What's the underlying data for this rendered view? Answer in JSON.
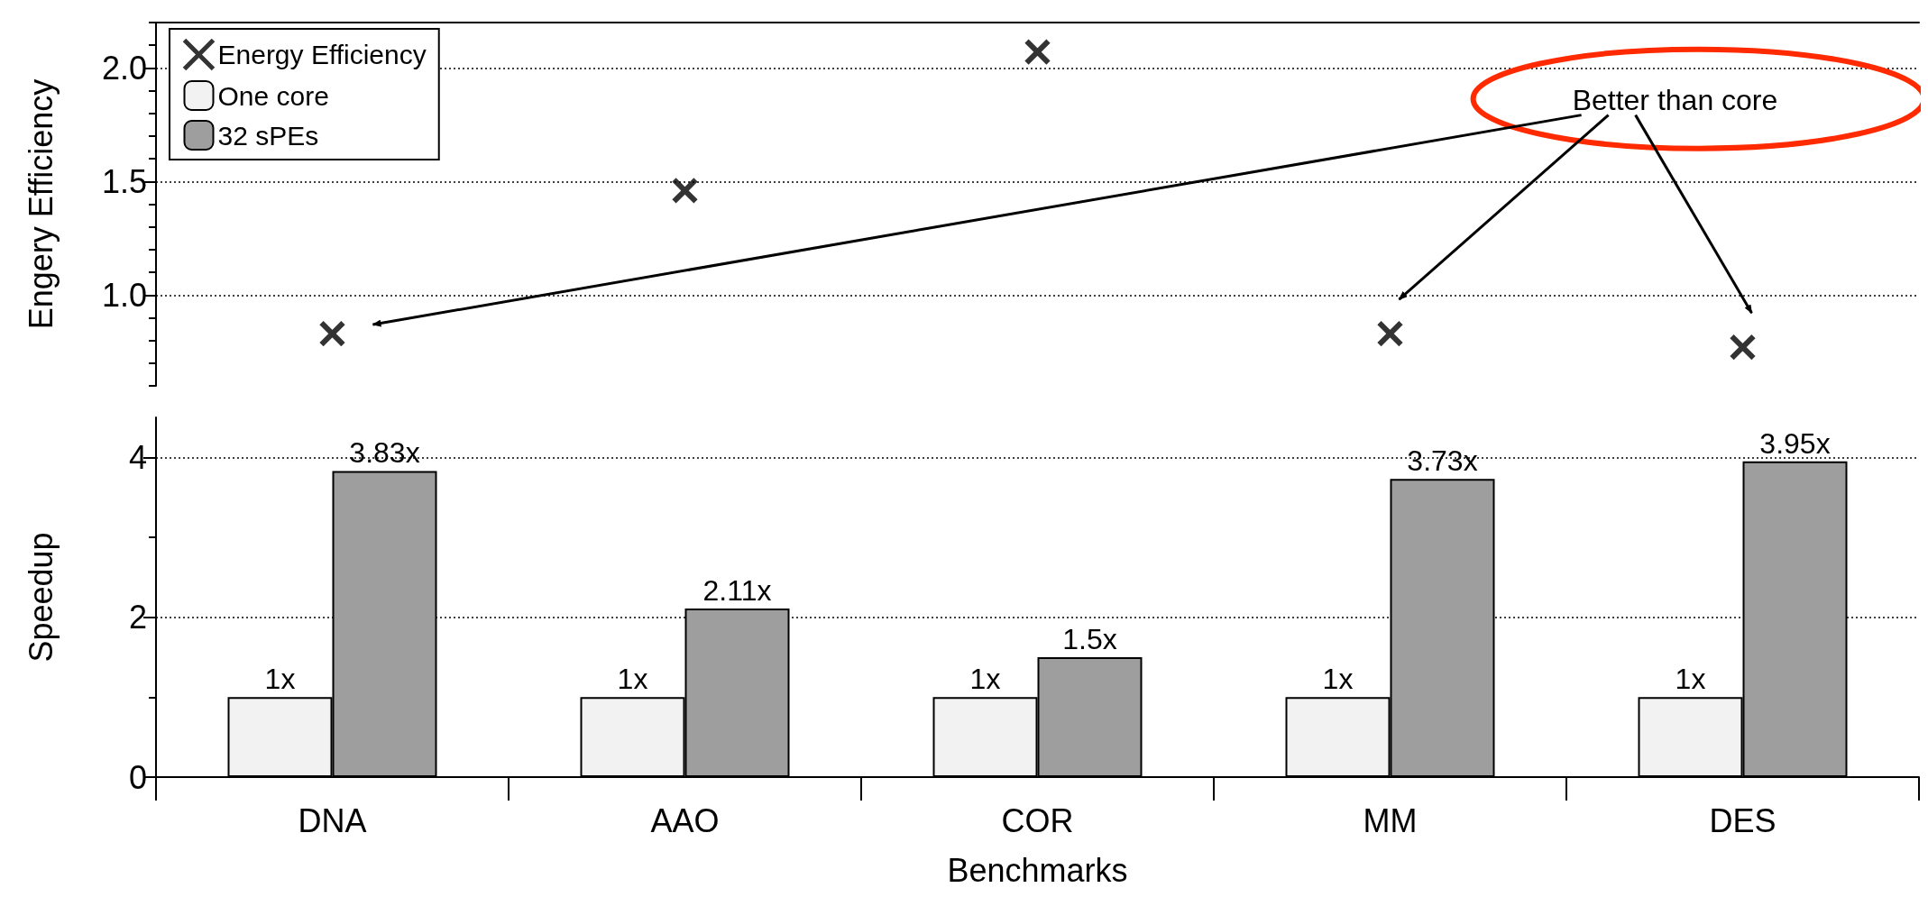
{
  "chart_data": [
    {
      "type": "scatter",
      "ylabel": "Engery Efficiency",
      "categories": [
        "DNA",
        "AAO",
        "COR",
        "MM",
        "DES"
      ],
      "series": [
        {
          "name": "Energy Efficiency",
          "color": "#000000",
          "values": [
            0.83,
            1.46,
            2.07,
            0.83,
            0.77
          ]
        }
      ],
      "ylim": [
        0.6,
        2.2
      ],
      "yticks": [
        {
          "value": 0.6,
          "label": null
        },
        {
          "value": 0.7,
          "label": null
        },
        {
          "value": 0.8,
          "label": null
        },
        {
          "value": 0.9,
          "label": null
        },
        {
          "value": 1.0,
          "label": "1.0"
        },
        {
          "value": 1.1,
          "label": null
        },
        {
          "value": 1.2,
          "label": null
        },
        {
          "value": 1.3,
          "label": null
        },
        {
          "value": 1.4,
          "label": null
        },
        {
          "value": 1.5,
          "label": "1.5"
        },
        {
          "value": 1.6,
          "label": null
        },
        {
          "value": 1.7,
          "label": null
        },
        {
          "value": 1.8,
          "label": null
        },
        {
          "value": 1.9,
          "label": null
        },
        {
          "value": 2.0,
          "label": "2.0"
        },
        {
          "value": 2.1,
          "label": null
        },
        {
          "value": 2.2,
          "label": null
        }
      ],
      "marker": "cross",
      "grid": "y",
      "legend": "top left",
      "tick_labels": "y",
      "annotations": [
        "Better than core"
      ]
    },
    {
      "type": "bar",
      "xlabel": "Benchmarks",
      "ylabel": "Speedup",
      "categories": [
        "DNA",
        "AAO",
        "COR",
        "MM",
        "DES"
      ],
      "series": [
        {
          "name": "One core",
          "color": "#f2f2f2",
          "values": [
            1,
            1,
            1,
            1,
            1
          ],
          "value_labels": [
            "1x",
            "1x",
            "1x",
            "1x",
            "1x"
          ]
        },
        {
          "name": "32 sPEs",
          "color": "#9e9e9e",
          "values": [
            3.83,
            2.11,
            1.5,
            3.73,
            3.95
          ],
          "value_labels": [
            "3.83x",
            "2.11x",
            "1.5x",
            "3.73x",
            "3.95x"
          ]
        }
      ],
      "ylim": [
        0,
        4.5
      ],
      "yticks": [
        0,
        {
          "value": 1,
          "label": null
        },
        2,
        {
          "value": 3,
          "label": null
        },
        4
      ],
      "grid": "y"
    }
  ]
}
